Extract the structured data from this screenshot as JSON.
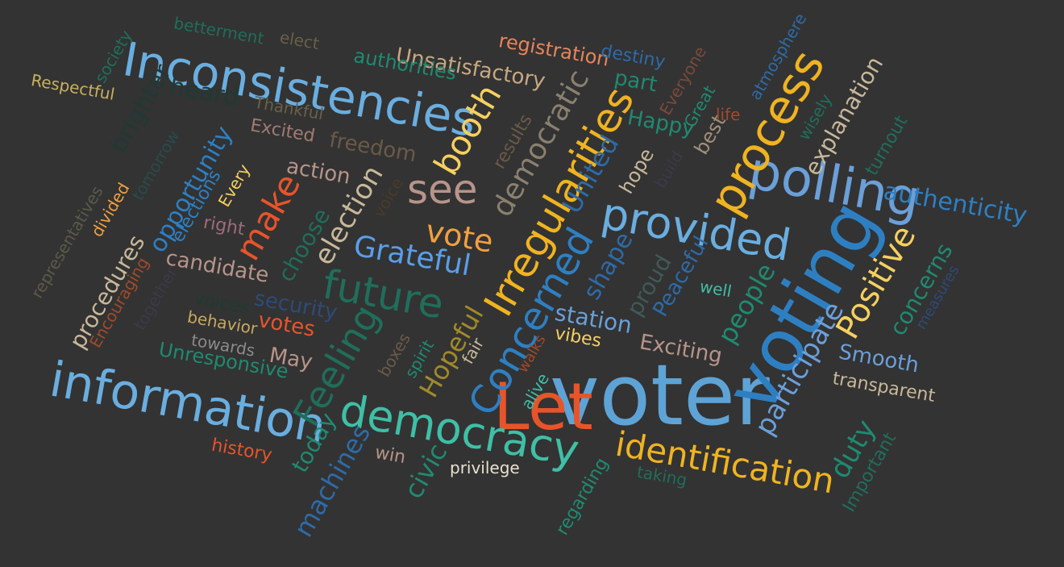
{
  "background_color": "#333333",
  "words": [
    {
      "text": "voter",
      "color": "#5ea3d6"
    },
    {
      "text": "voting",
      "color": "#2e7fc2"
    },
    {
      "text": "Inconsistencies",
      "color": "#6aaee0"
    },
    {
      "text": "Let",
      "color": "#e8542a"
    },
    {
      "text": "information",
      "color": "#6aaee0"
    },
    {
      "text": "polling",
      "color": "#6b9fd8"
    },
    {
      "text": "democracy",
      "color": "#3fbfa6"
    },
    {
      "text": "provided",
      "color": "#6aaee0"
    },
    {
      "text": "process",
      "color": "#f0b320"
    },
    {
      "text": "Irregularities",
      "color": "#f0b320"
    },
    {
      "text": "identification",
      "color": "#f0b320"
    },
    {
      "text": "Concerned",
      "color": "#2e7fc2"
    },
    {
      "text": "future",
      "color": "#1f6e5a"
    },
    {
      "text": "booth",
      "color": "#f5d060"
    },
    {
      "text": "see",
      "color": "#b8948a"
    },
    {
      "text": "Feeling",
      "color": "#1f6e5a"
    },
    {
      "text": "Grateful",
      "color": "#5a9ee8"
    },
    {
      "text": "authenticity",
      "color": "#2e7fc2"
    },
    {
      "text": "make",
      "color": "#e8542a"
    },
    {
      "text": "Positive",
      "color": "#f5d060"
    },
    {
      "text": "vote",
      "color": "#f0a040"
    },
    {
      "text": "democratic",
      "color": "#8a8070"
    },
    {
      "text": "participate",
      "color": "#6b9fd8"
    },
    {
      "text": "election",
      "color": "#c8b89a"
    },
    {
      "text": "United",
      "color": "#2e6aa8"
    },
    {
      "text": "Hopeful",
      "color": "#a08a2a"
    },
    {
      "text": "station",
      "color": "#6b9fd8"
    },
    {
      "text": "shape",
      "color": "#2e6aa8"
    },
    {
      "text": "machines",
      "color": "#2e6aa8"
    },
    {
      "text": "people",
      "color": "#1f8a70"
    },
    {
      "text": "opportunity",
      "color": "#2e7fc2"
    },
    {
      "text": "Unsatisfactory",
      "color": "#c8a880"
    },
    {
      "text": "duty",
      "color": "#1f8a70"
    },
    {
      "text": "explanation",
      "color": "#c8b89a"
    },
    {
      "text": "concerns",
      "color": "#1f8a70"
    },
    {
      "text": "Smooth",
      "color": "#6b9fd8"
    },
    {
      "text": "procedures",
      "color": "#c8b89a"
    },
    {
      "text": "Exciting",
      "color": "#b8948a"
    },
    {
      "text": "candidate",
      "color": "#b8948a"
    },
    {
      "text": "security",
      "color": "#2e4a78"
    },
    {
      "text": "civic",
      "color": "#1f8a70"
    },
    {
      "text": "today",
      "color": "#1f8a70"
    },
    {
      "text": "proud",
      "color": "#3f5a58"
    },
    {
      "text": "heard",
      "color": "#1f3a32"
    },
    {
      "text": "brighter",
      "color": "#1f3a32"
    },
    {
      "text": "choose",
      "color": "#1f6e5a"
    },
    {
      "text": "freedom",
      "color": "#6a5a48"
    },
    {
      "text": "action",
      "color": "#b8948a"
    },
    {
      "text": "authorities",
      "color": "#1f8a70"
    },
    {
      "text": "registration",
      "color": "#e8845a"
    },
    {
      "text": "Happy",
      "color": "#1f8a70"
    },
    {
      "text": "Peaceful",
      "color": "#2e6aa8"
    },
    {
      "text": "votes",
      "color": "#e8542a"
    },
    {
      "text": "May",
      "color": "#b8948a"
    },
    {
      "text": "transparent",
      "color": "#c8b89a"
    },
    {
      "text": "Unresponsive",
      "color": "#1f8a70"
    },
    {
      "text": "part",
      "color": "#1f8a70"
    },
    {
      "text": "vibes",
      "color": "#f5d060"
    },
    {
      "text": "hope",
      "color": "#c8b89a"
    },
    {
      "text": "destiny",
      "color": "#2e6aa8"
    },
    {
      "text": "best",
      "color": "#a0907a"
    },
    {
      "text": "results",
      "color": "#6a5a48"
    },
    {
      "text": "history",
      "color": "#e8542a"
    },
    {
      "text": "win",
      "color": "#b8948a"
    },
    {
      "text": "privilege",
      "color": "#e8e0d0"
    },
    {
      "text": "Respectful",
      "color": "#c8b060"
    },
    {
      "text": "behavior",
      "color": "#c8a860"
    },
    {
      "text": "Excited",
      "color": "#a07a72"
    },
    {
      "text": "right",
      "color": "#a06a78"
    },
    {
      "text": "Everyone",
      "color": "#7a4a3a"
    },
    {
      "text": "regarding",
      "color": "#1f8a70"
    },
    {
      "text": "Important",
      "color": "#1f6e5a"
    },
    {
      "text": "well",
      "color": "#3fbfa6"
    },
    {
      "text": "spirit",
      "color": "#1f8a70"
    },
    {
      "text": "fair",
      "color": "#c8b89a"
    },
    {
      "text": "boxes",
      "color": "#6a5a48"
    },
    {
      "text": "towards",
      "color": "#8a8a8a"
    },
    {
      "text": "voices",
      "color": "#1f3a32"
    },
    {
      "text": "elections",
      "color": "#2e7fc2"
    },
    {
      "text": "Every",
      "color": "#f5d060"
    },
    {
      "text": "Encouraging",
      "color": "#a04a2a"
    },
    {
      "text": "together",
      "color": "#3a3a4a"
    },
    {
      "text": "divided",
      "color": "#f0a040"
    },
    {
      "text": "representatives",
      "color": "#5a5a4a"
    },
    {
      "text": "tomorrow",
      "color": "#2a4a4a"
    },
    {
      "text": "society",
      "color": "#1f6e5a"
    },
    {
      "text": "betterment",
      "color": "#1f6e5a"
    },
    {
      "text": "elect",
      "color": "#6a6048"
    },
    {
      "text": "Thankful",
      "color": "#6a6048"
    },
    {
      "text": "voice",
      "color": "#4a3a2a"
    },
    {
      "text": "alive",
      "color": "#3fbfa6"
    },
    {
      "text": "walks",
      "color": "#a04a2a"
    },
    {
      "text": "taking",
      "color": "#1f6e5a"
    },
    {
      "text": "measures",
      "color": "#2e4a78"
    },
    {
      "text": "turnout",
      "color": "#1f6e5a"
    },
    {
      "text": "wisely",
      "color": "#1f6e5a"
    },
    {
      "text": "atmosphere",
      "color": "#2e6aa8"
    },
    {
      "text": "Great",
      "color": "#1f8a70"
    },
    {
      "text": "life",
      "color": "#a04a2a"
    },
    {
      "text": "build",
      "color": "#3a3a4a"
    }
  ]
}
